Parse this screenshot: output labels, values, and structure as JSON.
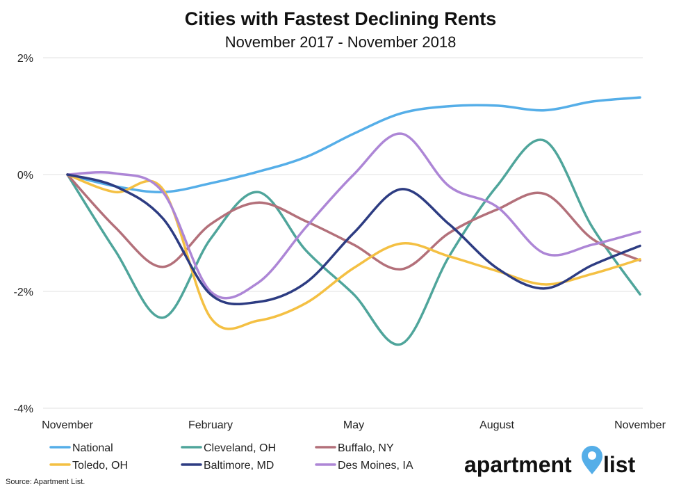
{
  "chart_data": {
    "type": "line",
    "title": "Cities with Fastest Declining Rents",
    "subtitle": "November 2017 - November 2018",
    "source": "Source: Apartment List.",
    "x": [
      "Nov 2017",
      "Dec 2017",
      "Jan 2018",
      "Feb 2018",
      "Mar 2018",
      "Apr 2018",
      "May 2018",
      "Jun 2018",
      "Jul 2018",
      "Aug 2018",
      "Sep 2018",
      "Oct 2018",
      "Nov 2018"
    ],
    "x_tick_labels": [
      "November",
      "February",
      "May",
      "August",
      "November"
    ],
    "y_tick_labels": [
      "2%",
      "0%",
      "-2%",
      "-4%"
    ],
    "ylim": [
      -4,
      2
    ],
    "grid": true,
    "legend_position": "bottom",
    "series": [
      {
        "name": "National",
        "color": "#55aee8",
        "values": [
          0,
          -0.2,
          -0.3,
          -0.15,
          0.05,
          0.3,
          0.7,
          1.05,
          1.17,
          1.18,
          1.1,
          1.25,
          1.32
        ]
      },
      {
        "name": "Cleveland, OH",
        "color": "#4fa59b",
        "values": [
          0,
          -1.3,
          -2.45,
          -1.1,
          -0.3,
          -1.3,
          -2.05,
          -2.9,
          -1.4,
          -0.2,
          0.58,
          -0.9,
          -2.05
        ]
      },
      {
        "name": "Buffalo, NY",
        "color": "#b3707a",
        "values": [
          0,
          -0.9,
          -1.58,
          -0.85,
          -0.48,
          -0.8,
          -1.2,
          -1.62,
          -1.0,
          -0.6,
          -0.33,
          -1.1,
          -1.47
        ]
      },
      {
        "name": "Toledo, OH",
        "color": "#f4c043",
        "values": [
          0,
          -0.3,
          -0.25,
          -2.45,
          -2.5,
          -2.2,
          -1.6,
          -1.18,
          -1.4,
          -1.65,
          -1.88,
          -1.7,
          -1.45
        ]
      },
      {
        "name": "Baltimore, MD",
        "color": "#2d3c82",
        "values": [
          0,
          -0.2,
          -0.75,
          -2.05,
          -2.18,
          -1.85,
          -1.0,
          -0.25,
          -0.85,
          -1.6,
          -1.95,
          -1.55,
          -1.22
        ]
      },
      {
        "name": "Des Moines, IA",
        "color": "#ad86d6",
        "values": [
          0,
          0.02,
          -0.3,
          -2.0,
          -1.85,
          -0.9,
          0.0,
          0.7,
          -0.2,
          -0.55,
          -1.35,
          -1.2,
          -0.98
        ]
      }
    ]
  },
  "logo": {
    "part1": "apartment",
    "part2": "list",
    "color": "#55aee8"
  }
}
